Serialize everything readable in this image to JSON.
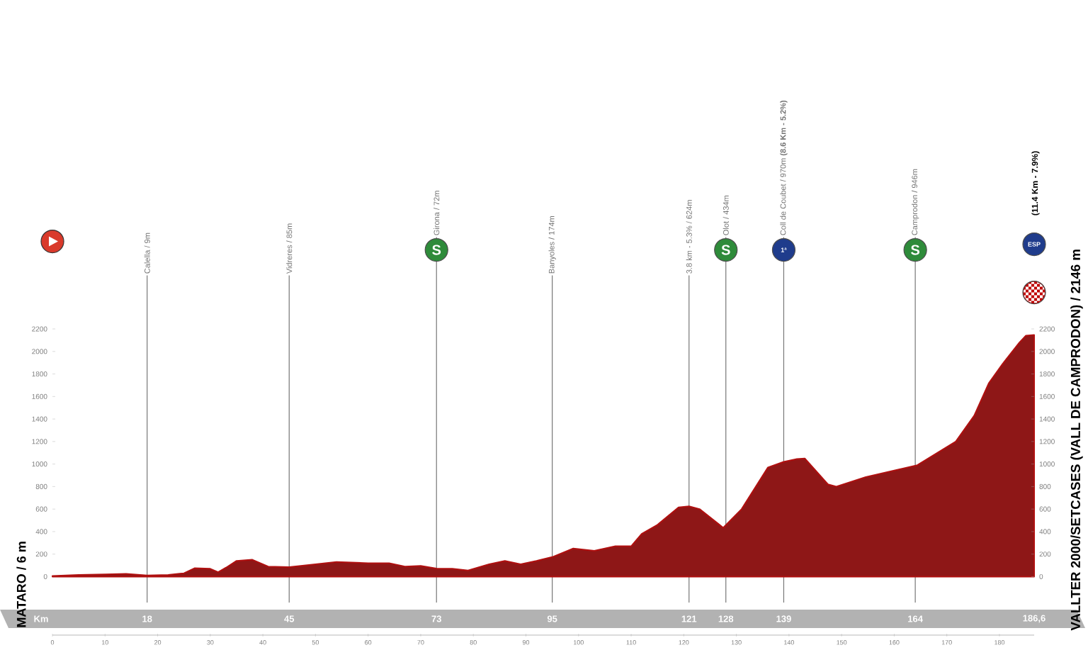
{
  "chart_data": {
    "type": "area",
    "color": "#8e1717",
    "x": [
      0,
      5,
      10,
      14,
      18,
      22,
      25,
      27,
      30,
      31.5,
      33,
      35,
      38,
      41,
      45,
      50,
      54,
      60,
      64,
      67,
      70,
      73,
      76,
      79,
      83,
      86,
      89,
      92,
      95,
      99,
      103,
      107,
      110,
      112,
      115,
      119,
      121,
      123,
      127.5,
      131,
      136,
      139,
      141.5,
      143,
      147.4,
      149,
      154.6,
      164.4,
      171.7,
      175.2,
      178,
      180.6,
      183.8,
      185,
      186.6
    ],
    "values": [
      6,
      15,
      20,
      25,
      10,
      15,
      30,
      75,
      70,
      40,
      80,
      140,
      150,
      90,
      85,
      110,
      130,
      120,
      120,
      90,
      95,
      72,
      70,
      55,
      110,
      140,
      110,
      140,
      174,
      250,
      230,
      270,
      270,
      380,
      460,
      615,
      624,
      600,
      434,
      600,
      970,
      1020,
      1045,
      1050,
      820,
      800,
      885,
      990,
      1200,
      1430,
      1720,
      1890,
      2080,
      2140,
      2146
    ],
    "xlim": [
      0,
      186.6
    ],
    "xticks": [
      0,
      10,
      20,
      30,
      40,
      50,
      60,
      70,
      80,
      90,
      100,
      110,
      120,
      130,
      140,
      150,
      160,
      170,
      180
    ],
    "ylim": [
      -230,
      2650
    ],
    "yticks": [
      0,
      200,
      400,
      600,
      800,
      1000,
      1200,
      1400,
      1600,
      1800,
      2000,
      2200
    ],
    "y2lim": [
      -230,
      2650
    ],
    "y2ticks": [
      0,
      200,
      400,
      600,
      800,
      1000,
      1200,
      1400,
      1600,
      1800,
      2000,
      2200
    ],
    "x2label": "Km",
    "x2lim": [
      0,
      186.6
    ],
    "x2ticks": [
      18,
      45,
      73,
      95,
      121,
      128,
      139,
      164,
      {
        "value": 186.6,
        "label": "186,6"
      }
    ],
    "ref_lines": [
      {
        "axis": "x",
        "value": 18,
        "label": "Calella / 9m",
        "color": "#777777"
      },
      {
        "axis": "x",
        "value": 45,
        "label": "Vidreres / 85m",
        "color": "#777777"
      },
      {
        "axis": "x",
        "value": 73,
        "label": "Girona / 72m",
        "color": "#777777"
      },
      {
        "axis": "x",
        "value": 95,
        "label": "Banyoles / 174m",
        "color": "#777777"
      },
      {
        "axis": "x",
        "value": 121,
        "label": "3.8 km - 5.3% / 624m",
        "color": "#777777"
      },
      {
        "axis": "x",
        "value": 128,
        "label": "Olot / 434m",
        "color": "#777777"
      },
      {
        "axis": "x",
        "value": 139,
        "label": "Coll de Coubet / 970m **(8.6 Km - 5.2%)**",
        "color": "#777777"
      },
      {
        "axis": "x",
        "value": 164,
        "label": "Camprodon / 946m",
        "color": "#777777"
      }
    ],
    "annotations": [
      "MATARO / 6 m",
      "VALLTER 2000/SETCASES (VALL DE CAMPRODON) / 2146 m",
      "(11.4 Km - 7.9%)",
      "S",
      "S",
      "1ª",
      "S",
      "ESP"
    ],
    "grid": false
  }
}
